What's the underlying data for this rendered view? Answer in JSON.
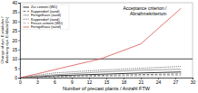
{
  "chart_data": {
    "type": "line",
    "xlabel": "Number of precast plants / Anzahl FTW",
    "ylabel": [
      "Change of dyn. E-modulus /",
      "Änderung dyn. E-Modul [%]"
    ],
    "xlim": [
      0,
      30
    ],
    "xticks": [
      0,
      3,
      6,
      9,
      12,
      15,
      18,
      21,
      24,
      27,
      30
    ],
    "ylim": [
      0,
      40
    ],
    "yticks": [
      0,
      5,
      10,
      15,
      20,
      25,
      30,
      35,
      40
    ],
    "grid": false,
    "legend": "upper left",
    "annotations": [
      {
        "text": [
          "Acceptance criterion /",
          "Abnahmekriterium"
        ],
        "y": 10
      }
    ],
    "series": [
      {
        "name": "Zur cement (WD)",
        "color": "#000000",
        "line_style": "solid",
        "x": [
          0,
          6,
          14,
          21,
          28
        ],
        "values": [
          0,
          1,
          1.8,
          2.5,
          3
        ]
      },
      {
        "name": "Kappendorf (sand)",
        "color": "#555555",
        "line_style": "dashed",
        "x": [
          0,
          6,
          14,
          21,
          28
        ],
        "values": [
          0,
          0.6,
          1.2,
          1.6,
          2
        ]
      },
      {
        "name": "Ferngelhaus (sand)",
        "color": "#888888",
        "line_style": "solid",
        "x": [
          0,
          6,
          14,
          21,
          28
        ],
        "values": [
          0,
          1.5,
          3,
          4,
          4.5
        ]
      },
      {
        "name": "Kappendorf (sand)",
        "color": "#333333",
        "line_style": "dotted",
        "x": [
          0,
          6,
          14,
          21,
          28
        ],
        "values": [
          0,
          2.5,
          4,
          5,
          6
        ]
      },
      {
        "name": "Frecas cement (WD)",
        "color": "#aaaaaa",
        "line_style": "dashed",
        "x": [
          0,
          6,
          14,
          21,
          28
        ],
        "values": [
          0,
          0.3,
          0.8,
          1,
          1.2
        ]
      },
      {
        "name": "Ferngelhaus (sand)",
        "color": "#d9534f",
        "line_style": "solid",
        "x": [
          0,
          3,
          7,
          14,
          21,
          28
        ],
        "values": [
          0,
          2,
          5,
          10,
          18,
          37
        ]
      }
    ]
  }
}
